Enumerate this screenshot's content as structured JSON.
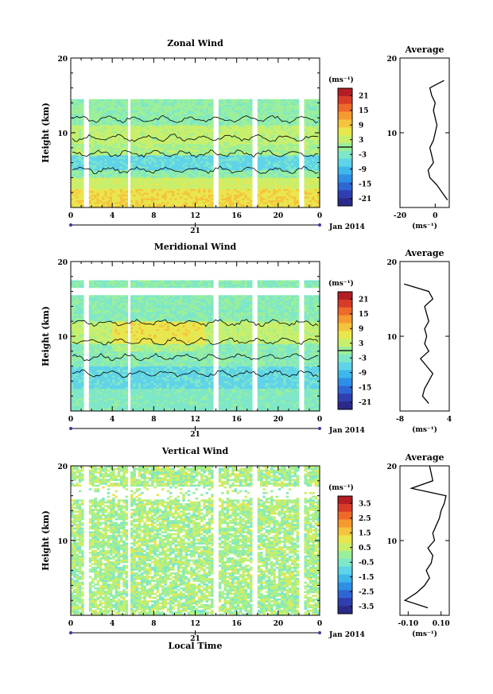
{
  "chart_data": [
    {
      "type": "heatmap",
      "title": "Zonal Wind",
      "ylabel": "Height (km)",
      "ylim": [
        0,
        20
      ],
      "yticks": [
        "20",
        "10"
      ],
      "xlim": [
        0,
        24
      ],
      "xticks": [
        "0",
        "4",
        "8",
        "12",
        "16",
        "20",
        "0"
      ],
      "date_day": "21",
      "date_label": "Jan 2014",
      "colorbar": {
        "unit": "(ms⁻¹)",
        "range": [
          -24,
          24
        ],
        "ticks": [
          "21",
          "15",
          "9",
          "3",
          "-3",
          "-9",
          "-15",
          "-21"
        ],
        "contour_level": 0
      },
      "profile": {
        "title": "Average",
        "xlim": [
          -20,
          8
        ],
        "xticks": [
          "-20",
          "0"
        ],
        "xlabel": "(ms⁻¹)",
        "yticks": [
          "20",
          "10"
        ],
        "heights": [
          1,
          2,
          3,
          4,
          5,
          6,
          7,
          8,
          9,
          10,
          11,
          12,
          13,
          14,
          15,
          16,
          17
        ],
        "values": [
          7,
          4,
          1,
          -3,
          -4,
          -1,
          -2,
          -3,
          -1,
          0,
          1,
          0,
          -1,
          0,
          -2,
          -3,
          5
        ]
      },
      "data_gaps": [
        [
          1.3,
          1.8
        ],
        [
          5.4,
          5.8
        ],
        [
          13.8,
          14.3
        ],
        [
          17.6,
          18.1
        ],
        [
          21.9,
          22.4
        ]
      ]
    },
    {
      "type": "heatmap",
      "title": "Meridional Wind",
      "ylabel": "Height (km)",
      "ylim": [
        0,
        20
      ],
      "yticks": [
        "20",
        "10"
      ],
      "xlim": [
        0,
        24
      ],
      "xticks": [
        "0",
        "4",
        "8",
        "12",
        "16",
        "20",
        "0"
      ],
      "date_day": "21",
      "date_label": "Jan 2014",
      "colorbar": {
        "unit": "(ms⁻¹)",
        "range": [
          -24,
          24
        ],
        "ticks": [
          "21",
          "15",
          "9",
          "3",
          "-3",
          "-9",
          "-15",
          "-21"
        ],
        "contour_level": 0
      },
      "profile": {
        "title": "Average",
        "xlim": [
          -8,
          4
        ],
        "xticks": [
          "-8",
          "4"
        ],
        "xlabel": "(ms⁻¹)",
        "yticks": [
          "20",
          "10"
        ],
        "heights": [
          1,
          2,
          3,
          4,
          5,
          6,
          7,
          8,
          9,
          10,
          11,
          12,
          13,
          14,
          15,
          16,
          17
        ],
        "values": [
          -1,
          -2.5,
          -2,
          -1,
          0,
          -1.5,
          -3,
          -1,
          -2,
          -1.5,
          -2,
          -1,
          -1.5,
          -2,
          0,
          -1,
          -7
        ]
      },
      "data_gaps": [
        [
          1.3,
          1.8
        ],
        [
          5.4,
          5.8
        ],
        [
          13.8,
          14.3
        ],
        [
          17.6,
          18.1
        ],
        [
          21.9,
          22.4
        ]
      ]
    },
    {
      "type": "heatmap",
      "title": "Vertical Wind",
      "ylabel": "Height (km)",
      "ylim": [
        0,
        20
      ],
      "yticks": [
        "20",
        "10"
      ],
      "xlim": [
        0,
        24
      ],
      "xticks": [
        "0",
        "4",
        "8",
        "12",
        "16",
        "20",
        "0"
      ],
      "date_day": "21",
      "date_label": "Jan 2014",
      "xlabel": "Local Time",
      "colorbar": {
        "unit": "(ms⁻¹)",
        "range": [
          -4,
          4
        ],
        "ticks": [
          "3.5",
          "2.5",
          "1.5",
          "0.5",
          "-0.5",
          "-1.5",
          "-2.5",
          "-3.5"
        ]
      },
      "profile": {
        "title": "Average",
        "xlim": [
          -0.15,
          0.15
        ],
        "xticks": [
          "-0.10",
          "0.10"
        ],
        "xlabel": "(ms⁻¹)",
        "yticks": [
          "20",
          "10"
        ],
        "heights": [
          1,
          2,
          3,
          4,
          5,
          6,
          7,
          8,
          9,
          10,
          11,
          12,
          13,
          14,
          15,
          16,
          17,
          18,
          19,
          20
        ],
        "values": [
          0.02,
          -0.12,
          -0.05,
          0.0,
          0.03,
          0.01,
          0.04,
          0.05,
          0.02,
          0.06,
          0.05,
          0.07,
          0.09,
          0.1,
          0.12,
          0.13,
          -0.08,
          0.05,
          0.04,
          0.03
        ]
      },
      "data_gaps": [
        [
          1.3,
          1.8
        ],
        [
          5.4,
          5.8
        ],
        [
          13.8,
          14.3
        ],
        [
          17.6,
          18.1
        ],
        [
          21.9,
          22.4
        ]
      ]
    }
  ]
}
